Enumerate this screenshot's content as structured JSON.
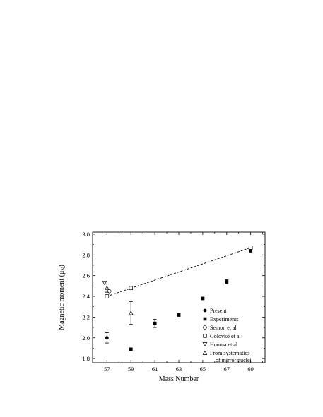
{
  "chart_data": {
    "type": "scatter",
    "xlabel": "Mass Number",
    "ylabel_main": "Magnetic moment (μ",
    "ylabel_sub": "N",
    "ylabel_close": ")",
    "xlim": [
      55.8,
      70.2
    ],
    "ylim": [
      1.76,
      3.02
    ],
    "xticks": [
      57,
      59,
      61,
      63,
      65,
      67,
      69
    ],
    "yticks": [
      1.8,
      2.0,
      2.2,
      2.4,
      2.6,
      2.8,
      3.0
    ],
    "ytick_labels": [
      "1.8",
      "2.0",
      "2.2",
      "2.4",
      "2.6",
      "2.8",
      "3.0"
    ],
    "legend_position": "bottom-right",
    "series": [
      {
        "name": "Present",
        "marker": "filled-circle",
        "points": [
          {
            "x": 57,
            "y": 2.0,
            "err": 0.05
          }
        ]
      },
      {
        "name": "Experiments",
        "marker": "filled-square",
        "points": [
          {
            "x": 59,
            "y": 1.89
          },
          {
            "x": 61,
            "y": 2.14,
            "err": 0.04
          },
          {
            "x": 63,
            "y": 2.22
          },
          {
            "x": 65,
            "y": 2.38
          },
          {
            "x": 67,
            "y": 2.54,
            "err": 0.02
          },
          {
            "x": 69,
            "y": 2.84
          }
        ]
      },
      {
        "name": "Semon et al",
        "marker": "open-circle",
        "points": [
          {
            "x": 57.2,
            "y": 2.45
          }
        ]
      },
      {
        "name": "Golovko et al",
        "marker": "open-square",
        "points": [
          {
            "x": 57,
            "y": 2.4
          },
          {
            "x": 59,
            "y": 2.48
          },
          {
            "x": 69,
            "y": 2.87
          }
        ]
      },
      {
        "name": "Honma et al",
        "marker": "open-triangle-down",
        "points": [
          {
            "x": 56.8,
            "y": 2.53
          }
        ]
      },
      {
        "name": "From systematics",
        "name_line2": "of mirror nuclei",
        "marker": "open-triangle-up",
        "points": [
          {
            "x": 57,
            "y": 2.48,
            "err": 0.04
          },
          {
            "x": 59,
            "y": 2.24,
            "err": 0.11
          }
        ]
      }
    ],
    "trend_line": {
      "style": "dashed",
      "points": [
        {
          "x": 57,
          "y": 2.4
        },
        {
          "x": 69,
          "y": 2.87
        }
      ]
    }
  }
}
